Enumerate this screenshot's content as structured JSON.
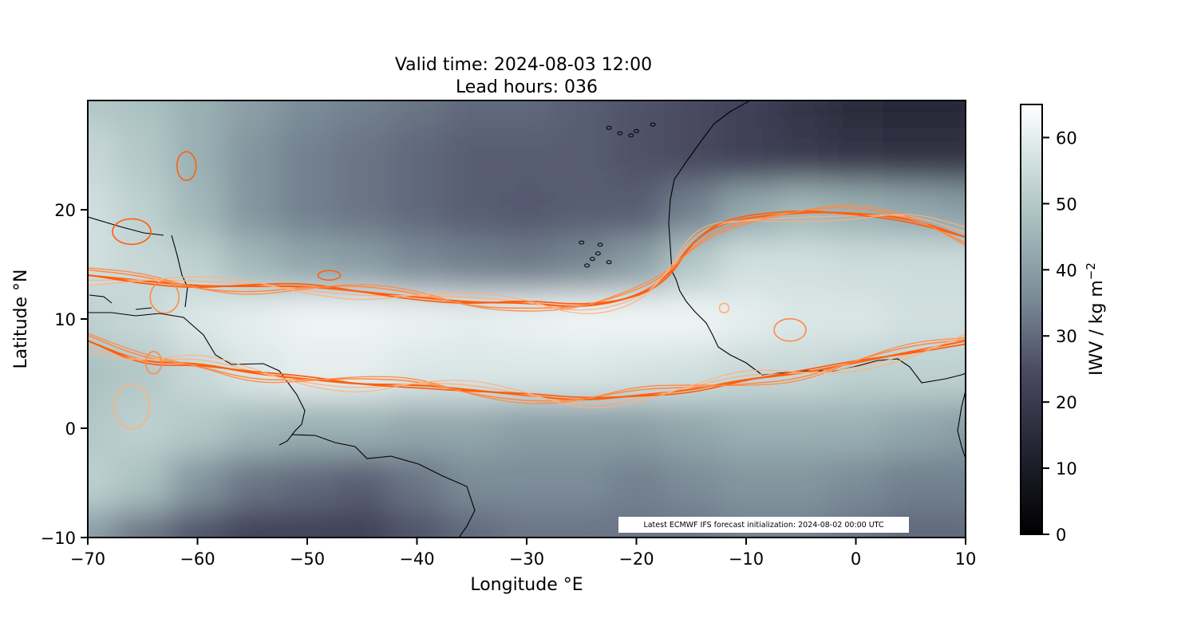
{
  "chart_data": {
    "type": "heatmap",
    "title_lines": [
      "Valid time: 2024-08-03 12:00",
      "Lead hours: 036"
    ],
    "xlabel": "Longitude °E",
    "ylabel": "Latitude °N",
    "xlim": [
      -70,
      10
    ],
    "ylim": [
      -10,
      30
    ],
    "x_ticks": [
      -70,
      -60,
      -50,
      -40,
      -30,
      -20,
      -10,
      0,
      10
    ],
    "x_tick_labels": [
      "−70",
      "−60",
      "−50",
      "−40",
      "−30",
      "−20",
      "−10",
      "0",
      "10"
    ],
    "y_ticks": [
      -10,
      0,
      10,
      20
    ],
    "y_tick_labels": [
      "−10",
      "0",
      "10",
      "20"
    ],
    "colorbar": {
      "label": "IWV / kg m",
      "label_exponent": "−2",
      "range": [
        0,
        65
      ],
      "ticks": [
        0,
        10,
        20,
        30,
        40,
        50,
        60
      ],
      "tick_labels": [
        "0",
        "10",
        "20",
        "30",
        "40",
        "50",
        "60"
      ],
      "colormap": "bone"
    },
    "annotation": "Latest ECMWF IFS forecast initialization: 2024-08-02 00:00 UTC",
    "contour_colors": [
      "#ff5f0e",
      "#ff8a45",
      "#ffb07c"
    ],
    "coastline_color": "#000000",
    "moist_band": {
      "north_edge": [
        [
          -70,
          14
        ],
        [
          -65,
          13.5
        ],
        [
          -60,
          13
        ],
        [
          -55,
          13
        ],
        [
          -50,
          13
        ],
        [
          -45,
          12.5
        ],
        [
          -40,
          12
        ],
        [
          -35,
          11.5
        ],
        [
          -30,
          11.5
        ],
        [
          -25,
          11
        ],
        [
          -20,
          12
        ],
        [
          -17,
          14
        ],
        [
          -15,
          17
        ],
        [
          -12,
          19
        ],
        [
          -5,
          19.8
        ],
        [
          0,
          19.7
        ],
        [
          5,
          19.2
        ],
        [
          10,
          17.5
        ]
      ],
      "south_edge": [
        [
          -70,
          8
        ],
        [
          -65,
          6
        ],
        [
          -60,
          6
        ],
        [
          -55,
          5
        ],
        [
          -50,
          4.5
        ],
        [
          -45,
          4
        ],
        [
          -40,
          4
        ],
        [
          -35,
          3.5
        ],
        [
          -30,
          3
        ],
        [
          -25,
          2.5
        ],
        [
          -20,
          3
        ],
        [
          -15,
          3.5
        ],
        [
          -10,
          4.5
        ],
        [
          -5,
          5
        ],
        [
          0,
          6
        ],
        [
          5,
          7
        ],
        [
          10,
          8
        ]
      ]
    },
    "iwv_field": {
      "lon_start": -70,
      "lon_step": 5,
      "lat_values": [
        30,
        25,
        20,
        15,
        10,
        5,
        0,
        -5,
        -10
      ],
      "values": [
        [
          50,
          48,
          44,
          40,
          36,
          34,
          32,
          30,
          30,
          28,
          26,
          24,
          22,
          18,
          15,
          14,
          14
        ],
        [
          54,
          50,
          44,
          38,
          34,
          32,
          30,
          28,
          28,
          28,
          26,
          24,
          22,
          20,
          18,
          17,
          17
        ],
        [
          56,
          52,
          46,
          38,
          34,
          32,
          30,
          28,
          27,
          28,
          28,
          34,
          42,
          46,
          44,
          42,
          40
        ],
        [
          56,
          54,
          52,
          46,
          42,
          40,
          36,
          34,
          33,
          35,
          40,
          50,
          56,
          56,
          55,
          55,
          55
        ],
        [
          52,
          54,
          58,
          60,
          62,
          62,
          61,
          60,
          61,
          62,
          62,
          62,
          60,
          58,
          58,
          56,
          56
        ],
        [
          48,
          50,
          54,
          58,
          60,
          60,
          58,
          58,
          58,
          58,
          57,
          56,
          54,
          54,
          52,
          52,
          52
        ],
        [
          50,
          52,
          50,
          46,
          44,
          44,
          42,
          42,
          40,
          40,
          40,
          42,
          44,
          44,
          44,
          42,
          40
        ],
        [
          52,
          48,
          38,
          32,
          30,
          28,
          32,
          36,
          36,
          36,
          34,
          36,
          38,
          38,
          36,
          34,
          34
        ],
        [
          40,
          32,
          26,
          22,
          22,
          22,
          26,
          30,
          32,
          32,
          32,
          32,
          34,
          34,
          32,
          30,
          30
        ]
      ]
    }
  }
}
